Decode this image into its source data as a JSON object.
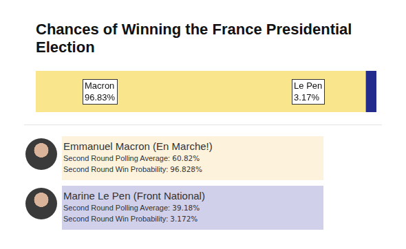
{
  "chart_data": {
    "type": "bar",
    "title": "Chances of Winning the France Presidential Election",
    "orientation": "horizontal",
    "stacked": true,
    "data_labels": true,
    "tick_labels": false,
    "grid": false,
    "categories": [
      null
    ],
    "xlim": [
      0,
      100
    ],
    "series": [
      {
        "name": "Macron",
        "color": "#f9e68c",
        "values": [
          96.83
        ],
        "value_labels": [
          "96.83%"
        ]
      },
      {
        "name": "Le Pen",
        "color": "#232b8c",
        "values": [
          3.17
        ],
        "value_labels": [
          "3.17%"
        ]
      }
    ]
  },
  "candidates": [
    {
      "name": "Emmanuel Macron (En Marche!)",
      "rows": [
        {
          "label": "Second Round Polling Average:",
          "value": "60.82%"
        },
        {
          "label": "Second Round Win Probability:",
          "value": "96.828%"
        }
      ]
    },
    {
      "name": "Marine Le Pen (Front National)",
      "rows": [
        {
          "label": "Second Round Polling Average:",
          "value": "39.18%"
        },
        {
          "label": "Second Round Win Probability:",
          "value": "3.172%"
        }
      ]
    }
  ]
}
